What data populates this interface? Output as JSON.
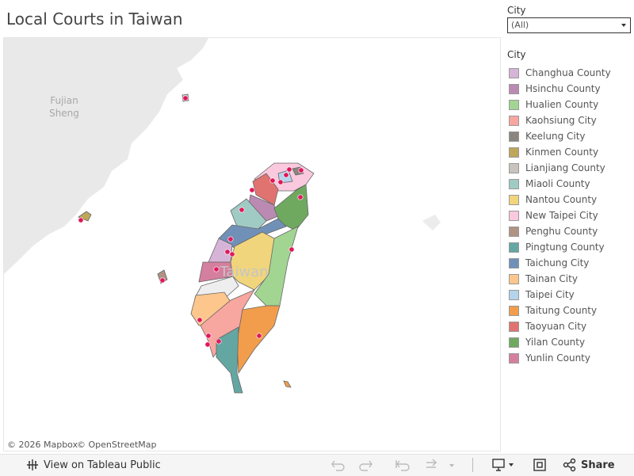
{
  "header": {
    "title": "Local Courts in Taiwan"
  },
  "filter": {
    "label": "City",
    "value": "(All)"
  },
  "legend": {
    "title": "City",
    "items": [
      {
        "label": "Changhua County",
        "color": "#d6b4d7"
      },
      {
        "label": "Hsinchu County",
        "color": "#bb8ab3"
      },
      {
        "label": "Hualien County",
        "color": "#a2d592"
      },
      {
        "label": "Kaohsiung City",
        "color": "#f8a6a0"
      },
      {
        "label": "Keelung City",
        "color": "#8b8580"
      },
      {
        "label": "Kinmen County",
        "color": "#bea65a"
      },
      {
        "label": "Lianjiang County",
        "color": "#c9c3be"
      },
      {
        "label": "Miaoli County",
        "color": "#a0cbc4"
      },
      {
        "label": "Nantou County",
        "color": "#f1d57c"
      },
      {
        "label": "New Taipei City",
        "color": "#fbc9dd"
      },
      {
        "label": "Penghu County",
        "color": "#b09383"
      },
      {
        "label": "Pingtung County",
        "color": "#64a7a2"
      },
      {
        "label": "Taichung City",
        "color": "#7090b7"
      },
      {
        "label": "Tainan City",
        "color": "#fcc68c"
      },
      {
        "label": "Taipei City",
        "color": "#b5d4ec"
      },
      {
        "label": "Taitung County",
        "color": "#f29d4c"
      },
      {
        "label": "Taoyuan City",
        "color": "#e0736f"
      },
      {
        "label": "Yilan County",
        "color": "#6fa960"
      },
      {
        "label": "Yunlin County",
        "color": "#d57f9f"
      }
    ]
  },
  "map": {
    "region_label": [
      "Fujian",
      "Sheng"
    ],
    "island_label": "Taiwan",
    "attribution": [
      "© 2026 Mapbox",
      "© OpenStreetMap"
    ]
  },
  "toolbar": {
    "view": "View on Tableau Public",
    "share": "Share"
  }
}
